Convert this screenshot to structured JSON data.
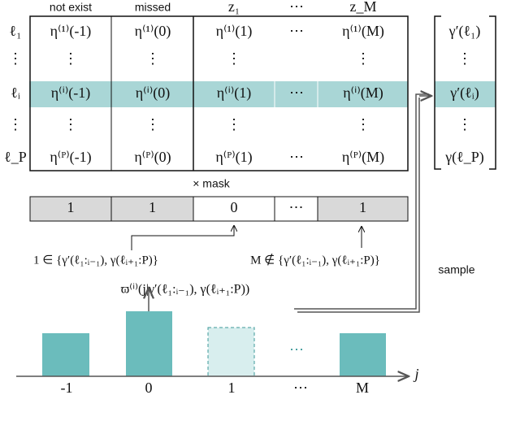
{
  "header": {
    "columns": [
      "not exist",
      "missed",
      "z₁",
      "⋯",
      "z_M"
    ]
  },
  "rows": {
    "labels": [
      "ℓ₁",
      "⋮",
      "ℓᵢ",
      "⋮",
      "ℓ_P"
    ],
    "cells": [
      [
        "η⁽¹⁾(-1)",
        "η⁽¹⁾(0)",
        "η⁽¹⁾(1)",
        "⋯",
        "η⁽¹⁾(M)"
      ],
      [
        "⋮",
        "⋮",
        "⋮",
        "",
        "⋮"
      ],
      [
        "η⁽ⁱ⁾(-1)",
        "η⁽ⁱ⁾(0)",
        "η⁽ⁱ⁾(1)",
        "⋯",
        "η⁽ⁱ⁾(M)"
      ],
      [
        "⋮",
        "⋮",
        "⋮",
        "",
        "⋮"
      ],
      [
        "η⁽ᴾ⁾(-1)",
        "η⁽ᴾ⁾(0)",
        "η⁽ᴾ⁾(1)",
        "⋯",
        "η⁽ᴾ⁾(M)"
      ]
    ]
  },
  "mask": {
    "label": "× mask",
    "cells": [
      "1",
      "1",
      "0",
      "⋯",
      "1"
    ]
  },
  "annotations": {
    "left": "1 ∈ {γ′(ℓ₁:ᵢ₋₁), γ(ℓᵢ₊₁:P)}",
    "right": "M ∉ {γ′(ℓ₁:ᵢ₋₁), γ(ℓᵢ₊₁:P)}",
    "sample": "sample",
    "prob": "ϖ⁽ⁱ⁾(j|γ′(ℓ₁:ᵢ₋₁), γ(ℓᵢ₊₁:P))"
  },
  "vector": [
    "γ′(ℓ₁)",
    "⋮",
    "γ′(ℓᵢ)",
    "⋮",
    "γ(ℓ_P)"
  ],
  "axis": {
    "label": "j",
    "ticks": [
      "-1",
      "0",
      "1",
      "⋯",
      "M"
    ]
  }
}
